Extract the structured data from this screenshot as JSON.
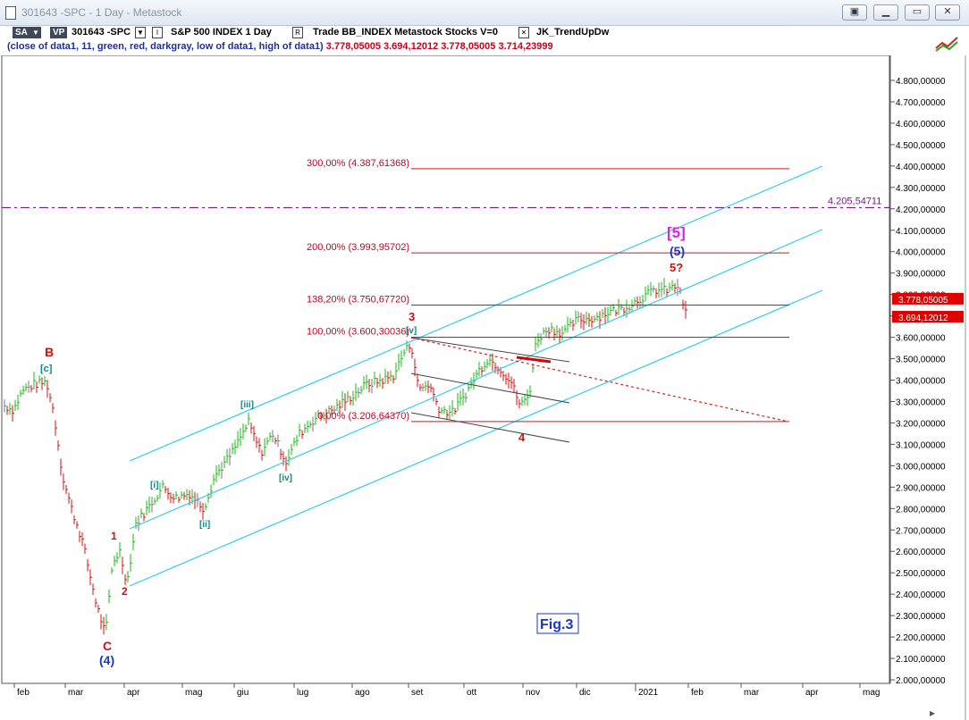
{
  "window": {
    "title": "301643 -SPC - 1 Day - Metastock"
  },
  "toolbar": {
    "sa": "SA",
    "vp": "VP",
    "symbol": "301643 -SPC",
    "box1": "▼",
    "box2": "I",
    "name": "S&P 500 INDEX  1 Day",
    "box3": "R",
    "desc": "Trade  BB_INDEX  Metastock  Stocks  V=0",
    "box4": "✕",
    "indicator": "JK_TrendUpDw"
  },
  "subline": {
    "label": "(close of data1,  11,  green,  red,  darkgray,  low of data1,  high of data1)",
    "values": "3.778,05005  3.694,12012  3.778,05005  3.714,23999"
  },
  "fib_levels": [
    {
      "label": "300,00% (4.387,61368)",
      "price": 4387.61
    },
    {
      "label": "200,00% (3.993,95702)",
      "price": 3993.96
    },
    {
      "label": "138,20% (3.750,67720)",
      "price": 3750.68
    },
    {
      "label": "100,00% (3.600,30036)",
      "price": 3600.3
    },
    {
      "label": "0,00% (3.206,64370)",
      "price": 3206.64
    }
  ],
  "horizontal_level": {
    "label": "4.205,54711",
    "price": 4205.55
  },
  "price_tags": [
    {
      "label": "3.778,05005",
      "price": 3778.05
    },
    {
      "label": "3.694,12012",
      "price": 3694.12
    }
  ],
  "y_axis": {
    "ticks": [
      "4.800,00000",
      "4.700,00000",
      "4.600,00000",
      "4.500,00000",
      "4.400,00000",
      "4.300,00000",
      "4.200,00000",
      "4.100,00000",
      "4.000,00000",
      "3.900,00000",
      "3.800,00000",
      "3.700,00000",
      "3.600,00000",
      "3.500,00000",
      "3.400,00000",
      "3.300,00000",
      "3.200,00000",
      "3.100,00000",
      "3.000,00000",
      "2.900,00000",
      "2.800,00000",
      "2.700,00000",
      "2.600,00000",
      "2.500,00000",
      "2.400,00000",
      "2.300,00000",
      "2.200,00000",
      "2.100,00000",
      "2.000,00000"
    ],
    "range": [
      2000,
      4800
    ]
  },
  "x_axis": {
    "months": [
      "feb",
      "mar",
      "apr",
      "mag",
      "giu",
      "lug",
      "ago",
      "set",
      "ott",
      "nov",
      "dic",
      "2021",
      "feb",
      "mar",
      "apr",
      "mag"
    ]
  },
  "wave_labels": {
    "B": "B",
    "c_minor": "[c]",
    "C": "C",
    "w4": "(4)",
    "one": "1",
    "two": "2",
    "i": "[i]",
    "ii": "[ii]",
    "iii": "[iii]",
    "iv": "[iv]",
    "v": "[v]",
    "three": "3",
    "four": "4",
    "five_q": "5?",
    "w5": "(5)",
    "w5_big": "[5]"
  },
  "figure_label": "Fig.3",
  "colors": {
    "up": "#18b818",
    "down": "#d01010",
    "neutral": "#777777",
    "channel": "#33ccee",
    "fib": "#cc1a1a",
    "purple": "#7a1a8a"
  }
}
